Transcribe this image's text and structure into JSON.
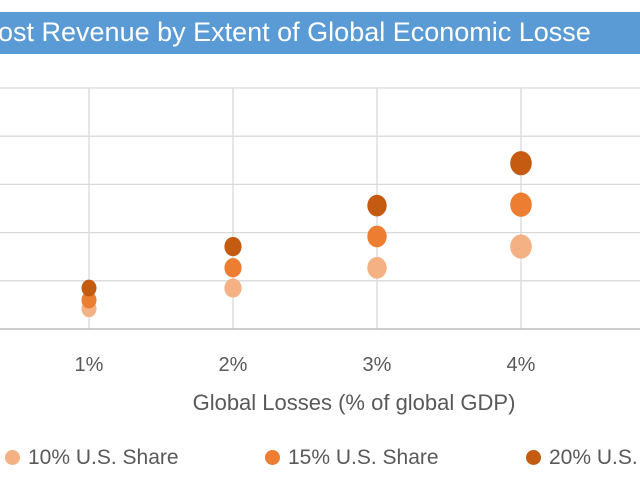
{
  "chart_data": {
    "type": "scatter",
    "title": "ost Revenue by Extent of Global Economic Losse",
    "xlabel": "Global Losses (% of global GDP)",
    "ylabel": "",
    "x": [
      1,
      2,
      3,
      4
    ],
    "x_tick_labels": [
      "1%",
      "2%",
      "3%",
      "4%"
    ],
    "ylim": [
      0,
      5
    ],
    "grid": true,
    "legend_position": "bottom",
    "series": [
      {
        "name": "10% U.S. Share",
        "color": "#F4B183",
        "values": [
          0.42,
          0.85,
          1.27,
          1.71
        ]
      },
      {
        "name": "15% U.S. Share",
        "color": "#ED7D31",
        "values": [
          0.6,
          1.27,
          1.92,
          2.58
        ]
      },
      {
        "name": "20% U.S.",
        "color": "#C55A11",
        "values": [
          0.85,
          1.71,
          2.56,
          3.44
        ]
      }
    ],
    "title_bar_color": "#5B9BD5"
  }
}
